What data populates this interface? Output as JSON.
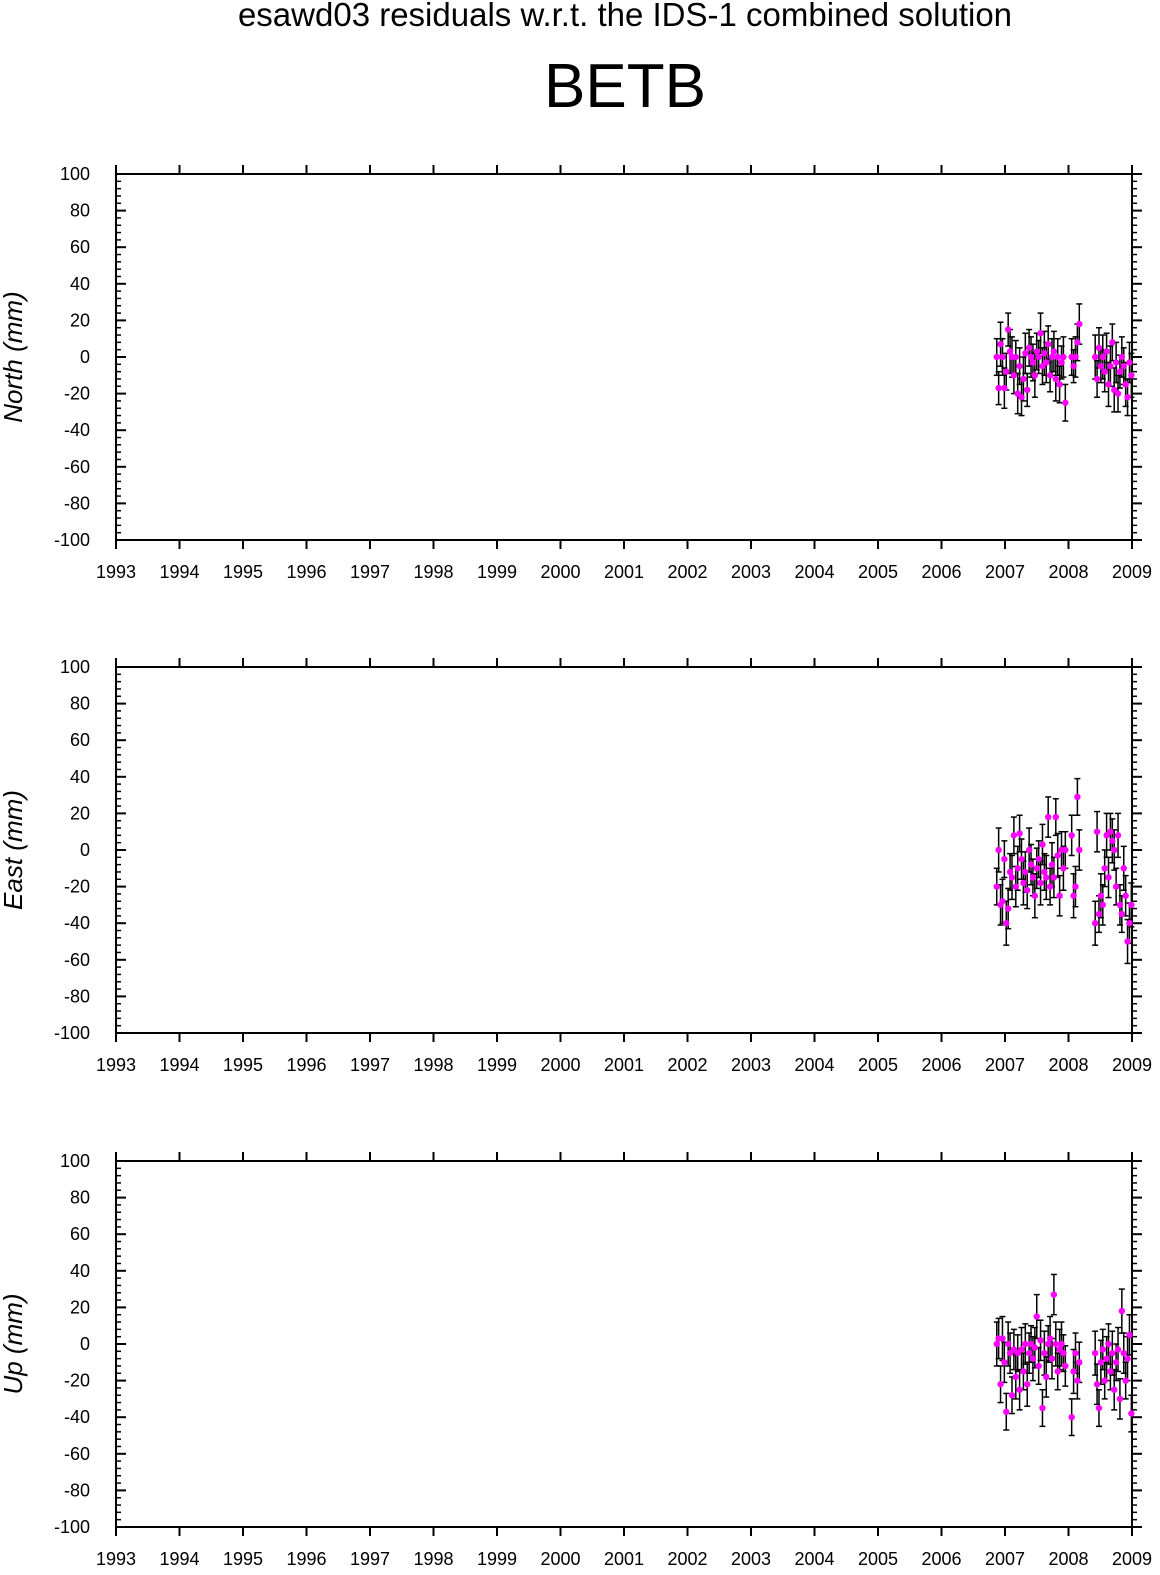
{
  "figure": {
    "suptitle": "esawd03 residuals w.r.t. the IDS-1 combined solution",
    "title": "BETB"
  },
  "colors": {
    "point": "#ff00ff",
    "errorbar": "#000000",
    "axes": "#000000",
    "background": "#ffffff"
  },
  "chart_data": [
    {
      "type": "scatter",
      "ylabel": "North (mm)",
      "xlim": [
        1993,
        2009
      ],
      "ylim": [
        -100,
        100
      ],
      "grid": false,
      "xticks": [
        "1993",
        "1994",
        "1995",
        "1996",
        "1997",
        "1998",
        "1999",
        "2000",
        "2001",
        "2002",
        "2003",
        "2004",
        "2005",
        "2006",
        "2007",
        "2008",
        "2009"
      ],
      "yticks": [
        "100",
        "80",
        "60",
        "40",
        "20",
        "0",
        "-20",
        "-40",
        "-60",
        "-80",
        "-100"
      ],
      "series": [
        {
          "x": [
            2006.87,
            2006.9,
            2006.93,
            2006.96,
            2006.99,
            2007.02,
            2007.05,
            2007.08,
            2007.11,
            2007.14,
            2007.17,
            2007.2,
            2007.23,
            2007.26,
            2007.29,
            2007.32,
            2007.35,
            2007.38,
            2007.41,
            2007.44,
            2007.47,
            2007.5,
            2007.53,
            2007.56,
            2007.59,
            2007.62,
            2007.65,
            2007.68,
            2007.71,
            2007.74,
            2007.77,
            2007.8,
            2007.83,
            2007.86,
            2007.89,
            2007.92,
            2007.95,
            2008.05,
            2008.08,
            2008.11,
            2008.14,
            2008.17,
            2008.42,
            2008.45,
            2008.48,
            2008.51,
            2008.54,
            2008.57,
            2008.6,
            2008.63,
            2008.66,
            2008.69,
            2008.72,
            2008.75,
            2008.78,
            2008.81,
            2008.84,
            2008.87,
            2008.9,
            2008.93,
            2008.96,
            2008.99
          ],
          "y": [
            0,
            -17,
            7,
            0,
            -17,
            -8,
            15,
            3,
            0,
            -10,
            0,
            -20,
            -5,
            -22,
            -12,
            2,
            -18,
            5,
            0,
            -3,
            -10,
            3,
            0,
            13,
            -5,
            2,
            -3,
            7,
            -10,
            0,
            3,
            -12,
            0,
            -15,
            -3,
            0,
            -25,
            0,
            -5,
            0,
            8,
            18,
            0,
            -12,
            5,
            -5,
            0,
            -8,
            3,
            -15,
            -5,
            8,
            -18,
            -3,
            -20,
            -8,
            0,
            -5,
            -15,
            -22,
            -3,
            -10
          ],
          "err": [
            10,
            9,
            12,
            10,
            11,
            10,
            9,
            12,
            11,
            10,
            9,
            11,
            10,
            10,
            12,
            11,
            9,
            10,
            11,
            10,
            12,
            10,
            9,
            11,
            10,
            12,
            11,
            10,
            9,
            10,
            11,
            12,
            10,
            10,
            9,
            11,
            10,
            10,
            9,
            11,
            10,
            11,
            12,
            10,
            11,
            9,
            12,
            11,
            10,
            12,
            11,
            10,
            12,
            11,
            10,
            9,
            11,
            10,
            12,
            10,
            11,
            12
          ]
        }
      ]
    },
    {
      "type": "scatter",
      "ylabel": "East (mm)",
      "xlim": [
        1993,
        2009
      ],
      "ylim": [
        -100,
        100
      ],
      "grid": false,
      "xticks": [
        "1993",
        "1994",
        "1995",
        "1996",
        "1997",
        "1998",
        "1999",
        "2000",
        "2001",
        "2002",
        "2003",
        "2004",
        "2005",
        "2006",
        "2007",
        "2008",
        "2009"
      ],
      "yticks": [
        "100",
        "80",
        "60",
        "40",
        "20",
        "0",
        "-20",
        "-40",
        "-60",
        "-80",
        "-100"
      ],
      "series": [
        {
          "x": [
            2006.87,
            2006.9,
            2006.93,
            2006.96,
            2006.99,
            2007.02,
            2007.05,
            2007.08,
            2007.11,
            2007.14,
            2007.17,
            2007.2,
            2007.23,
            2007.26,
            2007.29,
            2007.32,
            2007.35,
            2007.38,
            2007.41,
            2007.44,
            2007.47,
            2007.5,
            2007.53,
            2007.56,
            2007.59,
            2007.62,
            2007.65,
            2007.68,
            2007.71,
            2007.74,
            2007.77,
            2007.8,
            2007.83,
            2007.86,
            2007.89,
            2007.92,
            2007.95,
            2008.05,
            2008.08,
            2008.11,
            2008.14,
            2008.17,
            2008.42,
            2008.45,
            2008.48,
            2008.51,
            2008.54,
            2008.57,
            2008.6,
            2008.63,
            2008.66,
            2008.69,
            2008.72,
            2008.75,
            2008.78,
            2008.81,
            2008.84,
            2008.87,
            2008.9,
            2008.93,
            2008.96,
            2008.99
          ],
          "y": [
            -20,
            0,
            -30,
            -28,
            -5,
            -40,
            -32,
            -12,
            -15,
            8,
            -20,
            -10,
            9,
            -5,
            -18,
            -12,
            -22,
            0,
            -8,
            -15,
            -25,
            -10,
            -5,
            -18,
            3,
            -12,
            -15,
            18,
            -20,
            -8,
            -15,
            18,
            -3,
            -25,
            0,
            -10,
            0,
            8,
            -25,
            -20,
            29,
            0,
            -40,
            10,
            -35,
            -25,
            -30,
            -10,
            8,
            -15,
            10,
            5,
            0,
            -20,
            8,
            -30,
            -35,
            -10,
            -25,
            -50,
            -40,
            -30
          ],
          "err": [
            10,
            12,
            11,
            12,
            10,
            12,
            11,
            10,
            12,
            10,
            11,
            12,
            10,
            11,
            12,
            11,
            10,
            12,
            11,
            10,
            12,
            11,
            10,
            12,
            11,
            10,
            12,
            11,
            10,
            12,
            11,
            10,
            12,
            11,
            10,
            12,
            10,
            11,
            12,
            11,
            10,
            11,
            12,
            11,
            10,
            12,
            11,
            10,
            12,
            11,
            10,
            12,
            11,
            10,
            12,
            11,
            10,
            12,
            11,
            12,
            11,
            12
          ]
        }
      ]
    },
    {
      "type": "scatter",
      "ylabel": "Up (mm)",
      "xlim": [
        1993,
        2009
      ],
      "ylim": [
        -100,
        100
      ],
      "grid": false,
      "xticks": [
        "1993",
        "1994",
        "1995",
        "1996",
        "1997",
        "1998",
        "1999",
        "2000",
        "2001",
        "2002",
        "2003",
        "2004",
        "2005",
        "2006",
        "2007",
        "2008",
        "2009"
      ],
      "yticks": [
        "100",
        "80",
        "60",
        "40",
        "20",
        "0",
        "-20",
        "-40",
        "-60",
        "-80",
        "-100"
      ],
      "series": [
        {
          "x": [
            2006.87,
            2006.9,
            2006.93,
            2006.96,
            2006.99,
            2007.02,
            2007.05,
            2007.08,
            2007.11,
            2007.14,
            2007.17,
            2007.2,
            2007.23,
            2007.26,
            2007.29,
            2007.32,
            2007.35,
            2007.38,
            2007.41,
            2007.44,
            2007.47,
            2007.5,
            2007.53,
            2007.56,
            2007.59,
            2007.62,
            2007.65,
            2007.68,
            2007.71,
            2007.74,
            2007.77,
            2007.8,
            2007.83,
            2007.86,
            2007.89,
            2007.92,
            2007.95,
            2008.05,
            2008.08,
            2008.11,
            2008.14,
            2008.17,
            2008.42,
            2008.45,
            2008.48,
            2008.51,
            2008.54,
            2008.57,
            2008.6,
            2008.63,
            2008.66,
            2008.69,
            2008.72,
            2008.75,
            2008.78,
            2008.81,
            2008.84,
            2008.87,
            2008.9,
            2008.93,
            2008.96,
            2008.99
          ],
          "y": [
            0,
            3,
            -22,
            3,
            -10,
            -37,
            0,
            -5,
            -28,
            -3,
            -18,
            -5,
            -25,
            -3,
            -15,
            0,
            -22,
            -5,
            0,
            -8,
            -2,
            15,
            -12,
            2,
            -35,
            -5,
            -18,
            0,
            3,
            -8,
            27,
            0,
            -15,
            -3,
            0,
            -5,
            -12,
            -40,
            -15,
            -5,
            -20,
            -10,
            -5,
            -22,
            -35,
            -10,
            -3,
            -20,
            -8,
            0,
            -15,
            -5,
            -25,
            -10,
            -3,
            -30,
            18,
            -5,
            -20,
            -8,
            5,
            -38
          ],
          "err": [
            12,
            11,
            10,
            12,
            11,
            10,
            12,
            11,
            10,
            11,
            12,
            10,
            11,
            12,
            10,
            11,
            12,
            11,
            10,
            12,
            11,
            12,
            10,
            11,
            10,
            12,
            11,
            10,
            12,
            11,
            11,
            12,
            10,
            11,
            12,
            10,
            11,
            10,
            12,
            11,
            10,
            11,
            12,
            11,
            10,
            12,
            11,
            10,
            12,
            11,
            10,
            12,
            11,
            10,
            12,
            11,
            12,
            11,
            10,
            12,
            11,
            10
          ]
        }
      ]
    }
  ]
}
